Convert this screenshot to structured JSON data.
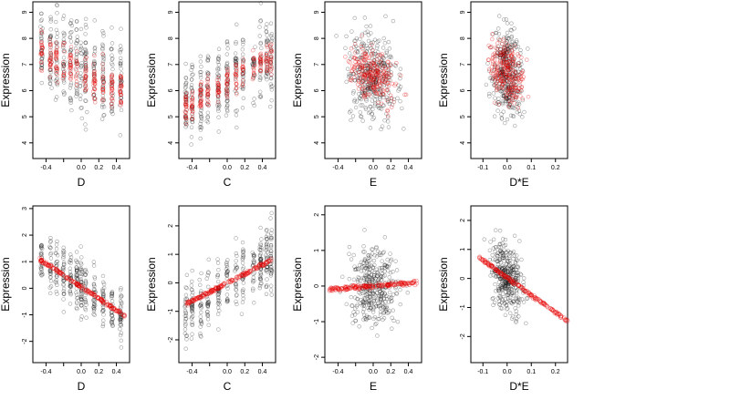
{
  "colors": {
    "observed": "#000000",
    "fitted": "#ff0000",
    "frame": "#000000"
  },
  "chart_data": [
    {
      "type": "scatter",
      "row": 1,
      "col": 1,
      "xlabel": "D",
      "ylabel": "Expression",
      "xlim": [
        -0.55,
        0.55
      ],
      "ylim": [
        3.4,
        9.4
      ],
      "xticks": [
        -0.4,
        -0.2,
        0.0,
        0.2,
        0.4
      ],
      "xticklabels": [
        "-0.4",
        "",
        "0.0",
        "0.2",
        "0.4"
      ],
      "yticks": [
        4,
        5,
        6,
        7,
        8,
        9
      ],
      "yticklabels": [
        "4",
        "5",
        "6",
        "7",
        "8",
        "9"
      ],
      "observed_model": {
        "x_groups": [
          -0.45,
          -0.35,
          -0.28,
          -0.2,
          -0.12,
          -0.05,
          0.0,
          0.05,
          0.15,
          0.25,
          0.35,
          0.45
        ],
        "y_center": 6.9,
        "y_slope": -1.6,
        "y_spread": 1.3
      },
      "fitted_model": {
        "x_groups": [
          -0.45,
          -0.35,
          -0.28,
          -0.2,
          -0.12,
          -0.05,
          0.05,
          0.15,
          0.25,
          0.35,
          0.45
        ],
        "y_center": 6.7,
        "y_slope": -1.4,
        "y_spread": 0.6
      }
    },
    {
      "type": "scatter",
      "row": 1,
      "col": 2,
      "xlabel": "C",
      "ylabel": "Expression",
      "xlim": [
        -0.55,
        0.55
      ],
      "ylim": [
        3.4,
        9.4
      ],
      "xticks": [
        -0.4,
        -0.2,
        0.0,
        0.2,
        0.4
      ],
      "xticklabels": [
        "-0.4",
        "",
        "0.0",
        "0.2",
        "0.4"
      ],
      "yticks": [
        4,
        5,
        6,
        7,
        8,
        9
      ],
      "yticklabels": [
        "4",
        "5",
        "6",
        "7",
        "8",
        "9"
      ],
      "observed_model": {
        "x_groups": [
          -0.47,
          -0.4,
          -0.3,
          -0.22,
          -0.1,
          0.0,
          0.1,
          0.18,
          0.3,
          0.38,
          0.45,
          0.5
        ],
        "y_center": 6.4,
        "y_slope": 1.9,
        "y_spread": 1.1
      },
      "fitted_model": {
        "x_groups": [
          -0.47,
          -0.4,
          -0.3,
          -0.22,
          -0.1,
          0.0,
          0.1,
          0.18,
          0.3,
          0.38,
          0.45,
          0.5
        ],
        "y_center": 6.3,
        "y_slope": 1.9,
        "y_spread": 0.45
      }
    },
    {
      "type": "scatter",
      "row": 1,
      "col": 3,
      "xlabel": "E",
      "ylabel": "Expression",
      "xlim": [
        -0.55,
        0.55
      ],
      "ylim": [
        3.4,
        9.4
      ],
      "xticks": [
        -0.4,
        -0.2,
        0.0,
        0.2,
        0.4
      ],
      "xticklabels": [
        "-0.4",
        "",
        "0.0",
        "0.2",
        "0.4"
      ],
      "yticks": [
        4,
        5,
        6,
        7,
        8,
        9
      ],
      "yticklabels": [
        "4",
        "5",
        "6",
        "7",
        "8",
        "9"
      ],
      "observed_model": {
        "x_center": 0.0,
        "x_spread": 0.2,
        "y_center": 6.5,
        "y_slope": -1.0,
        "y_spread": 1.2
      },
      "fitted_model": {
        "x_center": 0.0,
        "x_spread": 0.2,
        "y_center": 6.6,
        "y_slope": -1.6,
        "y_spread": 0.7
      }
    },
    {
      "type": "scatter",
      "row": 1,
      "col": 4,
      "xlabel": "D*E",
      "ylabel": "Expression",
      "xlim": [
        -0.15,
        0.25
      ],
      "ylim": [
        3.4,
        9.4
      ],
      "xticks": [
        -0.1,
        0.0,
        0.1,
        0.2
      ],
      "xticklabels": [
        "-0.1",
        "0.0",
        "0.1",
        "0.2"
      ],
      "yticks": [
        4,
        5,
        6,
        7,
        8,
        9
      ],
      "yticklabels": [
        "4",
        "5",
        "6",
        "7",
        "8",
        "9"
      ],
      "observed_model": {
        "x_center": 0.0,
        "x_spread": 0.045,
        "y_center": 6.7,
        "y_slope": -3.0,
        "y_spread": 1.2
      },
      "fitted_model": {
        "x_center": 0.0,
        "x_spread": 0.05,
        "y_center": 6.7,
        "y_slope": -4.0,
        "y_spread": 0.75
      }
    },
    {
      "type": "scatter",
      "row": 2,
      "col": 1,
      "xlabel": "D",
      "ylabel": "Expression",
      "xlim": [
        -0.55,
        0.55
      ],
      "ylim": [
        -2.8,
        3.1
      ],
      "xticks": [
        -0.4,
        -0.2,
        0.0,
        0.2,
        0.4
      ],
      "xticklabels": [
        "-0.4",
        "",
        "0.0",
        "0.2",
        "0.4"
      ],
      "yticks": [
        -2,
        -1,
        0,
        1,
        2,
        3
      ],
      "yticklabels": [
        "-2",
        "-1",
        "0",
        "1",
        "2",
        "3"
      ],
      "observed_model": {
        "x_groups": [
          -0.45,
          -0.35,
          -0.28,
          -0.2,
          -0.12,
          -0.05,
          0.0,
          0.05,
          0.15,
          0.25,
          0.35,
          0.45
        ],
        "y_center": 0.1,
        "y_slope": -2.3,
        "y_spread": 0.8
      },
      "fitted_line": {
        "x_range": [
          -0.47,
          0.5
        ],
        "intercept": 0.05,
        "slope": -2.2,
        "n": 60
      }
    },
    {
      "type": "scatter",
      "row": 2,
      "col": 2,
      "xlabel": "C",
      "ylabel": "Expression",
      "xlim": [
        -0.55,
        0.55
      ],
      "ylim": [
        -2.8,
        2.7
      ],
      "xticks": [
        -0.4,
        -0.2,
        0.0,
        0.2,
        0.4
      ],
      "xticklabels": [
        "-0.4",
        "",
        "0.0",
        "0.2",
        "0.4"
      ],
      "yticks": [
        -2,
        -1,
        0,
        1,
        2
      ],
      "yticklabels": [
        "-2",
        "-1",
        "0",
        "1",
        "2"
      ],
      "observed_model": {
        "x_groups": [
          -0.47,
          -0.4,
          -0.3,
          -0.22,
          -0.1,
          0.0,
          0.1,
          0.18,
          0.3,
          0.38,
          0.45,
          0.5
        ],
        "y_center": 0.0,
        "y_slope": 1.9,
        "y_spread": 0.85
      },
      "fitted_line": {
        "x_range": [
          -0.47,
          0.5
        ],
        "intercept": 0.0,
        "slope": 1.6,
        "n": 60
      }
    },
    {
      "type": "scatter",
      "row": 2,
      "col": 3,
      "xlabel": "E",
      "ylabel": "Expression",
      "xlim": [
        -0.55,
        0.55
      ],
      "ylim": [
        -2.15,
        2.25
      ],
      "xticks": [
        -0.4,
        -0.2,
        0.0,
        0.2,
        0.4
      ],
      "xticklabels": [
        "-0.4",
        "",
        "0.0",
        "0.2",
        "0.4"
      ],
      "yticks": [
        -2,
        -1,
        0,
        1,
        2
      ],
      "yticklabels": [
        "-2",
        "-1",
        "0",
        "1",
        "2"
      ],
      "observed_model": {
        "x_center": 0.0,
        "x_spread": 0.2,
        "y_center": 0.0,
        "y_slope": 0.0,
        "y_spread": 0.8
      },
      "fitted_line": {
        "x_range": [
          -0.5,
          0.5
        ],
        "intercept": 0.0,
        "slope": 0.2,
        "n": 60
      }
    },
    {
      "type": "scatter",
      "row": 2,
      "col": 4,
      "xlabel": "D*E",
      "ylabel": "Expression",
      "xlim": [
        -0.15,
        0.25
      ],
      "ylim": [
        -2.9,
        2.5
      ],
      "xticks": [
        -0.1,
        0.0,
        0.1,
        0.2
      ],
      "xticklabels": [
        "-0.1",
        "0.0",
        "0.1",
        "0.2"
      ],
      "yticks": [
        -2,
        -1,
        0,
        1,
        2
      ],
      "yticklabels": [
        "-2",
        "-1",
        "0",
        "1",
        "2"
      ],
      "observed_model": {
        "x_center": 0.0,
        "x_spread": 0.045,
        "y_center": 0.0,
        "y_slope": -6.0,
        "y_spread": 0.8
      },
      "fitted_line": {
        "x_range": [
          -0.12,
          0.25
        ],
        "intercept": 0.03,
        "slope": -6.0,
        "n": 60
      }
    }
  ]
}
